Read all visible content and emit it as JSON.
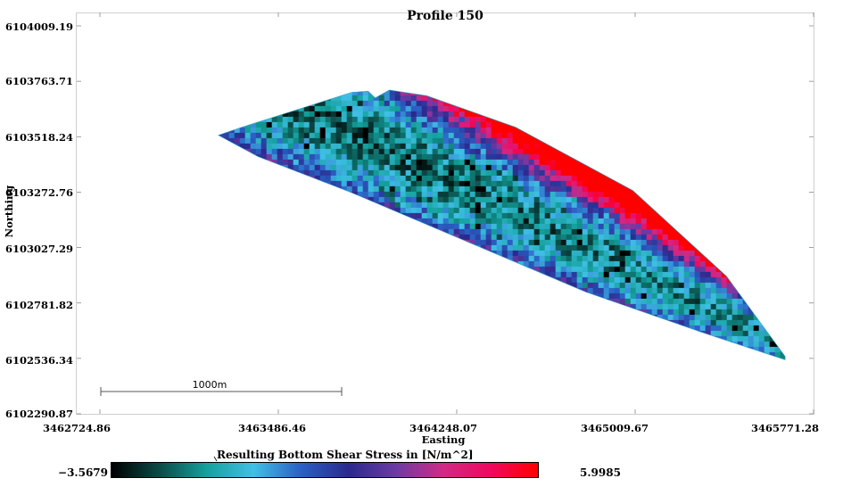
{
  "map": {
    "title": "Profile 150",
    "xlabel": "Easting",
    "ylabel": "Northing",
    "x_ticks": [
      "3462724.86",
      "3463486.46",
      "3464248.07",
      "3465009.67",
      "3465771.28"
    ],
    "y_ticks": [
      "6104009.19",
      "6103763.71",
      "6103518.24",
      "6103272.76",
      "6103027.29",
      "6102781.82",
      "6102536.34",
      "6102290.87"
    ],
    "x_range": [
      3462724.86,
      3465771.28
    ],
    "y_range": [
      6102290.87,
      6104009.19
    ],
    "scalebar_label": "1000m",
    "scalebar_length_m": 1000,
    "domain_outline": {
      "easting": [
        3463230,
        3463330,
        3463800,
        3463870,
        3463900,
        3463960,
        3464120,
        3464500,
        3465000,
        3465400,
        3465650,
        3465650,
        3465300,
        3464800,
        3464300,
        3463800,
        3463400,
        3463230
      ],
      "northing": [
        6103525,
        6103560,
        6103715,
        6103720,
        6103690,
        6103725,
        6103700,
        6103560,
        6103280,
        6102900,
        6102545,
        6102530,
        6102650,
        6102830,
        6103050,
        6103270,
        6103430,
        6103525
      ]
    }
  },
  "colorbar": {
    "title": "Resulting Bottom Shear Stress in [N/m^2]",
    "min_label": "−3.5679",
    "max_label": "5.9985",
    "min": -3.5679,
    "max": 5.9985,
    "stops": [
      "#000000",
      "#0a4a46",
      "#14a09c",
      "#40c0e6",
      "#2a60c4",
      "#2a2a8e",
      "#6c3aa4",
      "#d02a86",
      "#f0085e",
      "#ff0000"
    ]
  }
}
